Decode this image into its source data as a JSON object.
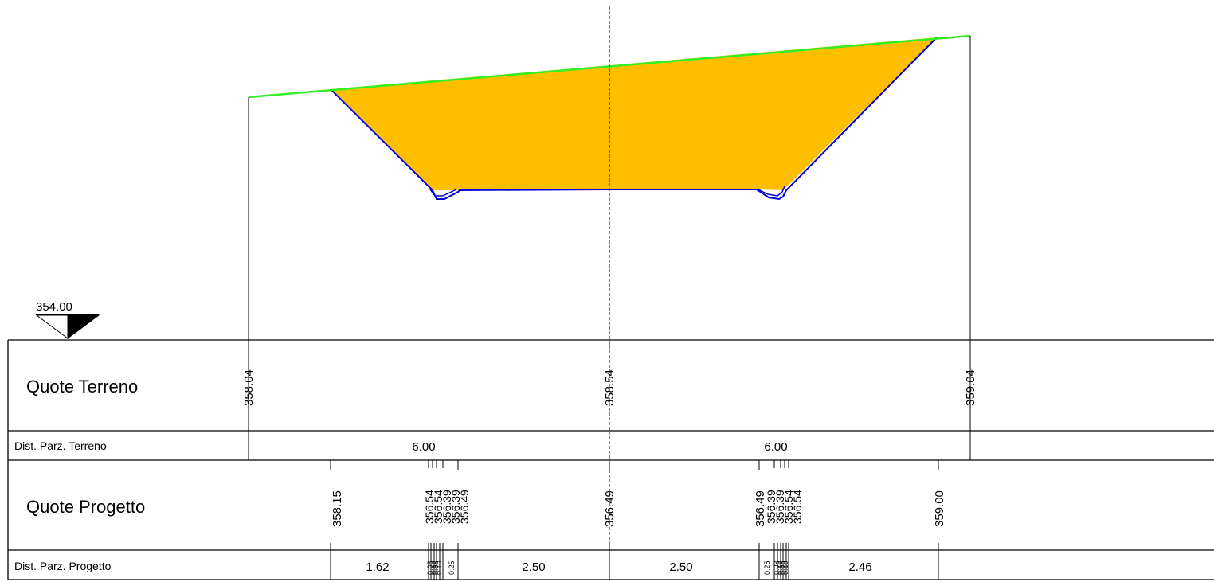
{
  "reference": {
    "level_label": "354.00"
  },
  "colors": {
    "cut_fill": "#ffbf00",
    "ground_line": "#33ee22",
    "project_line": "#0000dd",
    "table_lines": "#000000"
  },
  "rows": {
    "quote_terreno": {
      "label": "Quote Terreno",
      "values": [
        "358.04",
        "358.54",
        "359.04"
      ]
    },
    "dist_parz_terreno": {
      "label": "Dist. Parz. Terreno",
      "values": [
        "6.00",
        "6.00"
      ]
    },
    "quote_progetto": {
      "label": "Quote Progetto",
      "values": [
        "358.15",
        "356.54",
        "356.54",
        "356.39",
        "356.39",
        "356.49",
        "356.49",
        "356.49",
        "356.39",
        "356.39",
        "356.54",
        "356.54",
        "359.00"
      ]
    },
    "dist_parz_progetto": {
      "label": "Dist. Parz. Progetto",
      "values": [
        "1.62",
        "2.50",
        "2.50",
        "2.46"
      ],
      "small_values": [
        "0.25",
        "0.25"
      ],
      "overlapped_values": [
        "0.08",
        "0.10",
        "0.08",
        "0.10",
        "0.08",
        "0.10",
        "0.08",
        "0.10"
      ]
    }
  }
}
